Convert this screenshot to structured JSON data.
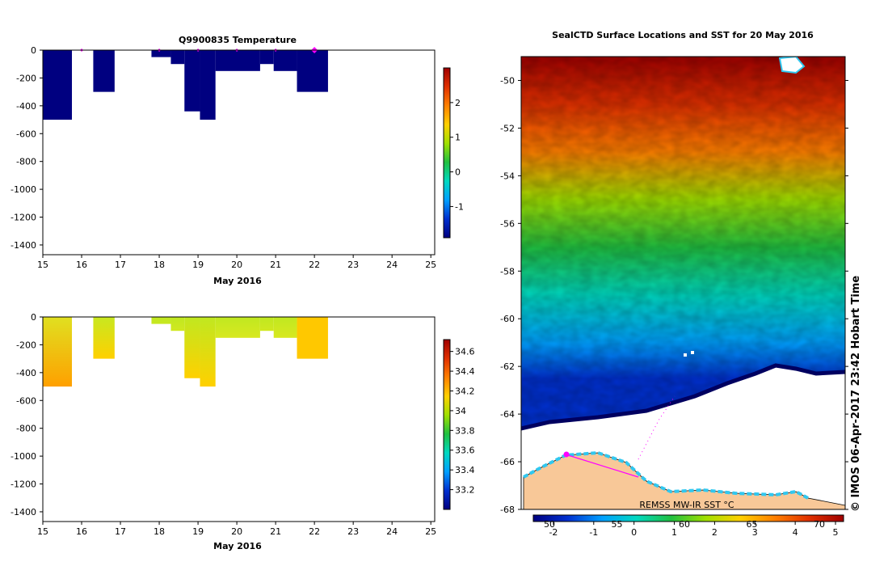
{
  "chart_data": [
    {
      "type": "heatmap",
      "id": "temperature",
      "title": "Q9900835  Temperature",
      "xlabel": "May 2016",
      "xlim": [
        15,
        25.1
      ],
      "ylim": [
        -1470,
        0
      ],
      "xticks": [
        "15",
        "16",
        "17",
        "18",
        "19",
        "20",
        "21",
        "22",
        "23",
        "24",
        "25"
      ],
      "yticks": [
        "0",
        "-200",
        "-400",
        "-600",
        "-800",
        "-1000",
        "-1200",
        "-1400"
      ],
      "profile_marks": [
        16.0,
        18.0,
        19.0,
        20.0,
        21.0,
        22.0
      ],
      "columns": [
        {
          "x0": 15.0,
          "x1": 15.75,
          "depth": -500,
          "value": -1.75
        },
        {
          "x0": 16.3,
          "x1": 16.85,
          "depth": -300,
          "value": -1.75
        },
        {
          "x0": 17.8,
          "x1": 18.3,
          "depth": -50,
          "value": -1.75
        },
        {
          "x0": 18.3,
          "x1": 18.65,
          "depth": -100,
          "value": -1.75
        },
        {
          "x0": 18.65,
          "x1": 19.05,
          "depth": -440,
          "value": -1.75
        },
        {
          "x0": 19.05,
          "x1": 19.45,
          "depth": -500,
          "value": -1.75
        },
        {
          "x0": 19.45,
          "x1": 20.6,
          "depth": -150,
          "value": -1.75
        },
        {
          "x0": 20.6,
          "x1": 20.95,
          "depth": -100,
          "value": -1.75
        },
        {
          "x0": 20.95,
          "x1": 21.55,
          "depth": -150,
          "value": -1.75
        },
        {
          "x0": 21.55,
          "x1": 22.35,
          "depth": -300,
          "value": -1.75
        }
      ],
      "colorbar": {
        "ticks": [
          "2",
          "1",
          "0",
          "-1"
        ],
        "tick_values": [
          2,
          1,
          0,
          -1
        ],
        "range": [
          -1.9,
          3.0
        ],
        "colors": [
          "#000080",
          "#0030d0",
          "#00a0ff",
          "#00d8c0",
          "#20c040",
          "#a0e000",
          "#ffd000",
          "#ff8000",
          "#e03000",
          "#a00000"
        ]
      }
    },
    {
      "type": "heatmap",
      "id": "salinity",
      "title": "",
      "xlabel": "May 2016",
      "xlim": [
        15,
        25.1
      ],
      "ylim": [
        -1470,
        0
      ],
      "xticks": [
        "15",
        "16",
        "17",
        "18",
        "19",
        "20",
        "21",
        "22",
        "23",
        "24",
        "25"
      ],
      "yticks": [
        "0",
        "-200",
        "-400",
        "-600",
        "-800",
        "-1000",
        "-1200",
        "-1400"
      ],
      "columns": [
        {
          "x0": 15.0,
          "x1": 15.75,
          "depth": -500,
          "top": "#e0e020",
          "bottom": "#ffa000"
        },
        {
          "x0": 16.3,
          "x1": 16.85,
          "depth": -300,
          "top": "#c8e820",
          "bottom": "#ffd000"
        },
        {
          "x0": 17.8,
          "x1": 18.3,
          "depth": -50,
          "top": "#c0e820",
          "bottom": "#c8e820"
        },
        {
          "x0": 18.3,
          "x1": 18.65,
          "depth": -100,
          "top": "#c0e820",
          "bottom": "#d0e820"
        },
        {
          "x0": 18.65,
          "x1": 19.05,
          "depth": -440,
          "top": "#c0e820",
          "bottom": "#ffd000"
        },
        {
          "x0": 19.05,
          "x1": 19.45,
          "depth": -500,
          "top": "#c0e820",
          "bottom": "#ffd000"
        },
        {
          "x0": 19.45,
          "x1": 20.6,
          "depth": -150,
          "top": "#c0e820",
          "bottom": "#d8e820"
        },
        {
          "x0": 20.6,
          "x1": 20.95,
          "depth": -100,
          "top": "#c0e820",
          "bottom": "#d0e820"
        },
        {
          "x0": 20.95,
          "x1": 21.55,
          "depth": -150,
          "top": "#c0e820",
          "bottom": "#d8e820"
        },
        {
          "x0": 21.55,
          "x1": 22.35,
          "depth": -300,
          "top": "#ffc800",
          "bottom": "#ffc800"
        }
      ],
      "colorbar": {
        "ticks": [
          "34.6",
          "34.4",
          "34.2",
          "34",
          "33.8",
          "33.6",
          "33.4",
          "33.2"
        ],
        "tick_values": [
          34.6,
          34.4,
          34.2,
          34.0,
          33.8,
          33.6,
          33.4,
          33.2
        ],
        "range": [
          33.0,
          34.72
        ],
        "colors": [
          "#000080",
          "#0030d0",
          "#00a0ff",
          "#00d8c0",
          "#20c040",
          "#a0e000",
          "#ffd000",
          "#ff8000",
          "#e03000",
          "#a00000"
        ]
      }
    },
    {
      "type": "heatmap",
      "id": "sst_map",
      "title": "SealCTD Surface Locations and SST for 20 May 2016",
      "ylim": [
        -68,
        -49
      ],
      "yticks": [
        "-50",
        "-52",
        "-54",
        "-56",
        "-58",
        "-60",
        "-62",
        "-64",
        "-66",
        "-68"
      ],
      "lat_bands": [
        {
          "lat": -49,
          "value": 4.8
        },
        {
          "lat": -51,
          "value": 4.2
        },
        {
          "lat": -53,
          "value": 3.2
        },
        {
          "lat": -55,
          "value": 2.2
        },
        {
          "lat": -57,
          "value": 1.0
        },
        {
          "lat": -59,
          "value": -0.2
        },
        {
          "lat": -61,
          "value": -0.9
        },
        {
          "lat": -62.5,
          "value": -1.5
        },
        {
          "lat": -63.5,
          "value": -1.8
        }
      ],
      "colorbar": {
        "top_ticks": [
          "50",
          "55",
          "60",
          "65",
          "70"
        ],
        "bottom_ticks": [
          "-2",
          "-1",
          "0",
          "1",
          "2",
          "3",
          "4",
          "5"
        ],
        "bottom_tick_values": [
          -2,
          -1,
          0,
          1,
          2,
          3,
          4,
          5
        ],
        "range": [
          -2.5,
          5.2
        ]
      },
      "annotation": "REMSS MW-IR SST °C",
      "side_text": "© IMOS 06-Apr-2017 23:42 Hobart Time"
    }
  ]
}
